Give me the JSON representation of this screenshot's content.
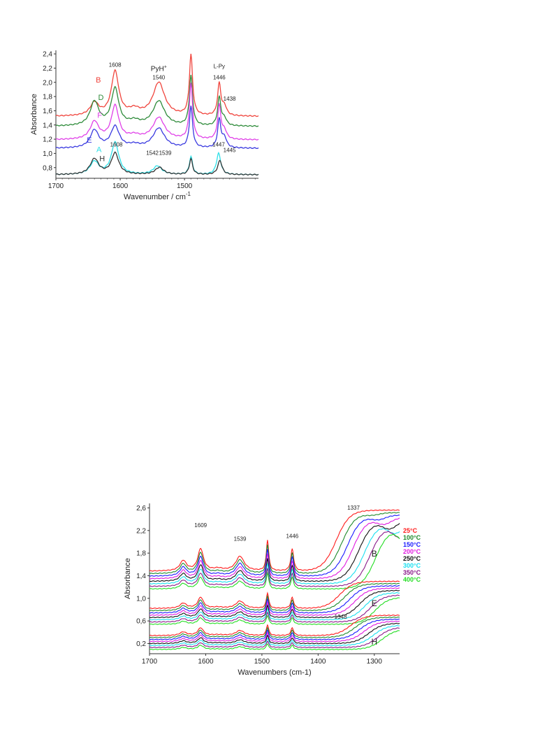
{
  "chart_data": [
    {
      "type": "line",
      "xlabel": "Wavenumber / cm",
      "xlabel_sup": "-1",
      "ylabel": "Absorbance",
      "xlim": [
        1700,
        1385
      ],
      "ylim": [
        0.65,
        2.45
      ],
      "xticks": [
        1700,
        1600,
        1500
      ],
      "yticks": [
        "0,8",
        "1,0",
        "1,2",
        "1,4",
        "1,6",
        "1,8",
        "2,0",
        "2,2",
        "2,4"
      ],
      "ytick_values": [
        0.8,
        1.0,
        1.2,
        1.4,
        1.6,
        1.8,
        2.0,
        2.2,
        2.4
      ],
      "series": [
        {
          "name": "B",
          "color": "#f0443c",
          "baseline": 1.52,
          "peaks": [
            [
              1640,
              0.18,
              8
            ],
            [
              1608,
              0.62,
              7
            ],
            [
              1578,
              0.08,
              10
            ],
            [
              1540,
              0.47,
              11
            ],
            [
              1490,
              0.85,
              3
            ],
            [
              1446,
              0.45,
              3
            ],
            [
              1438,
              0.13,
              4
            ]
          ]
        },
        {
          "name": "D",
          "color": "#2e8b3a",
          "baseline": 1.38,
          "peaks": [
            [
              1640,
              0.34,
              8
            ],
            [
              1608,
              0.52,
              7
            ],
            [
              1578,
              0.06,
              10
            ],
            [
              1540,
              0.35,
              11
            ],
            [
              1490,
              0.7,
              3
            ],
            [
              1446,
              0.4,
              3
            ],
            [
              1438,
              0.1,
              4
            ]
          ]
        },
        {
          "name": "F",
          "color": "#e040e8",
          "baseline": 1.19,
          "peaks": [
            [
              1640,
              0.25,
              8
            ],
            [
              1608,
              0.47,
              7
            ],
            [
              1578,
              0.05,
              10
            ],
            [
              1540,
              0.31,
              11
            ],
            [
              1490,
              0.78,
              3
            ],
            [
              1446,
              0.48,
              3
            ],
            [
              1438,
              0.12,
              4
            ]
          ]
        },
        {
          "name": "E",
          "color": "#3a3ae0",
          "baseline": 1.07,
          "peaks": [
            [
              1640,
              0.25,
              8
            ],
            [
              1608,
              0.3,
              8
            ],
            [
              1578,
              0.04,
              10
            ],
            [
              1540,
              0.28,
              11
            ],
            [
              1490,
              0.58,
              3
            ],
            [
              1446,
              0.4,
              3
            ],
            [
              1438,
              0.14,
              4
            ]
          ]
        },
        {
          "name": "A",
          "color": "#2ee0e8",
          "baseline": 0.7,
          "peaks": [
            [
              1640,
              0.18,
              8
            ],
            [
              1608,
              0.45,
              7
            ],
            [
              1542,
              0.12,
              8
            ],
            [
              1490,
              0.25,
              3
            ],
            [
              1447,
              0.3,
              4
            ]
          ]
        },
        {
          "name": "H",
          "color": "#333333",
          "baseline": 0.7,
          "peaks": [
            [
              1640,
              0.22,
              8
            ],
            [
              1608,
              0.3,
              7
            ],
            [
              1539,
              0.1,
              8
            ],
            [
              1490,
              0.22,
              3
            ],
            [
              1445,
              0.2,
              4
            ]
          ]
        }
      ],
      "annotations": [
        {
          "text": "1608",
          "x": 1608,
          "y": 2.22
        },
        {
          "text": "PyH",
          "sup": "+",
          "x": 1540,
          "y": 2.16
        },
        {
          "text": "1540",
          "x": 1540,
          "y": 2.04
        },
        {
          "text": "L-Py",
          "x": 1446,
          "y": 2.2
        },
        {
          "text": "1446",
          "x": 1446,
          "y": 2.04
        },
        {
          "text": "1438",
          "x": 1430,
          "y": 1.74
        },
        {
          "text": "1608",
          "x": 1606,
          "y": 1.1
        },
        {
          "text": "1542",
          "x": 1550,
          "y": 0.98
        },
        {
          "text": "1539",
          "x": 1530,
          "y": 0.98
        },
        {
          "text": "1447",
          "x": 1447,
          "y": 1.1
        },
        {
          "text": "1445",
          "x": 1430,
          "y": 1.02
        }
      ],
      "series_labels": [
        {
          "text": "B",
          "x": 1634,
          "y": 2.0
        },
        {
          "text": "D",
          "x": 1630,
          "y": 1.75
        },
        {
          "text": "F",
          "x": 1632,
          "y": 1.5
        },
        {
          "text": "E",
          "x": 1648,
          "y": 1.15
        },
        {
          "text": "A",
          "x": 1633,
          "y": 1.02
        },
        {
          "text": "H",
          "x": 1628,
          "y": 0.89
        }
      ]
    },
    {
      "type": "line",
      "xlabel": "Wavenumbers (cm-1)",
      "ylabel": "Absorbance",
      "xlim": [
        1700,
        1255
      ],
      "ylim": [
        0.02,
        2.68
      ],
      "xticks": [
        1700,
        1600,
        1500,
        1400,
        1300
      ],
      "yticks": [
        "0,2",
        "0,6",
        "1,0",
        "1,4",
        "1,8",
        "2,2",
        "2,6"
      ],
      "ytick_values": [
        0.2,
        0.6,
        1.0,
        1.4,
        1.8,
        2.2,
        2.6
      ],
      "legend_position": "right",
      "legend": [
        {
          "label": "25°C",
          "color": "#ff1a1a"
        },
        {
          "label": "100°C",
          "color": "#1f8a2b"
        },
        {
          "label": "150°C",
          "color": "#1a1aff"
        },
        {
          "label": "200°C",
          "color": "#e01ae0"
        },
        {
          "label": "250°C",
          "color": "#111111"
        },
        {
          "label": "300°C",
          "color": "#1ae0f0"
        },
        {
          "label": "350°C",
          "color": "#8a1a8a"
        },
        {
          "label": "400°C",
          "color": "#22dd22"
        }
      ],
      "groups": [
        {
          "name": "B",
          "top": 1.48,
          "step": 0.045,
          "edge": 1348,
          "edge_step": 10,
          "rise": 1.08
        },
        {
          "name": "E",
          "top": 0.82,
          "step": 0.04,
          "edge": 1342,
          "edge_step": 9,
          "rise": 0.48
        },
        {
          "name": "H",
          "top": 0.34,
          "step": 0.035,
          "edge": 1322,
          "edge_step": 8,
          "rise": 0.36
        }
      ],
      "annotations": [
        {
          "text": "1609",
          "x": 1609,
          "y": 2.26
        },
        {
          "text": "1539",
          "x": 1539,
          "y": 2.02
        },
        {
          "text": "1446",
          "x": 1446,
          "y": 2.07
        },
        {
          "text": "1337",
          "x": 1337,
          "y": 2.57
        },
        {
          "text": "1348",
          "x": 1360,
          "y": 0.64
        }
      ],
      "group_labels": [
        {
          "text": "B",
          "x": 1300,
          "y": 1.74
        },
        {
          "text": "E",
          "x": 1300,
          "y": 0.86
        },
        {
          "text": "H",
          "x": 1300,
          "y": 0.18
        }
      ]
    }
  ]
}
